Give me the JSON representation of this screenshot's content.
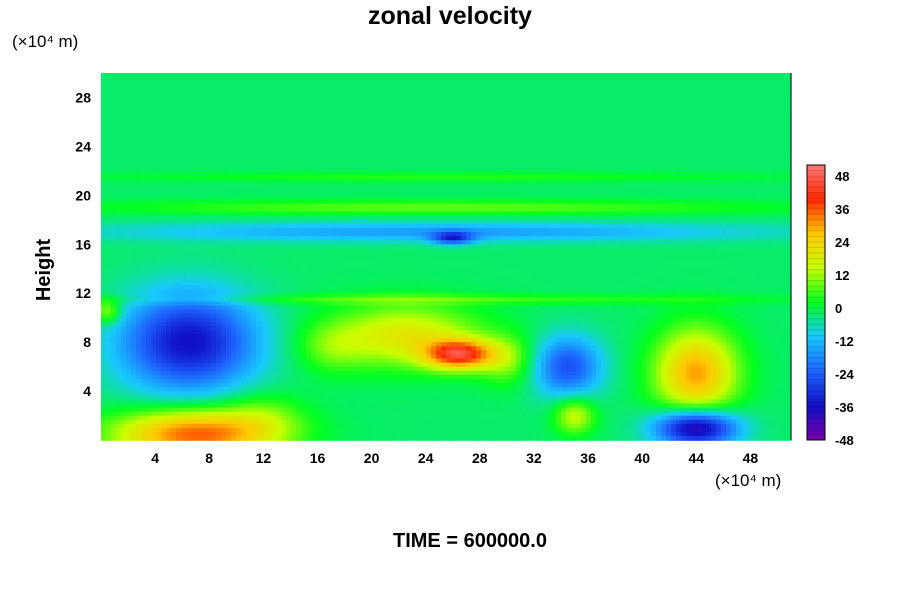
{
  "chart_data": {
    "type": "heatmap",
    "title": "zonal velocity",
    "xlabel": "",
    "ylabel": "Height",
    "x_unit": "(×10⁴ m)",
    "y_unit": "(×10⁴ m)",
    "xlim": [
      0,
      51
    ],
    "ylim": [
      0,
      30
    ],
    "x_ticks": [
      4,
      8,
      12,
      16,
      20,
      24,
      28,
      32,
      36,
      40,
      44,
      48
    ],
    "y_ticks": [
      4,
      8,
      12,
      16,
      20,
      24,
      28
    ],
    "colorbar": {
      "range": [
        -48,
        52
      ],
      "ticks": [
        48,
        36,
        24,
        12,
        0,
        -12,
        -24,
        -36,
        -48
      ],
      "colors_low_to_high": [
        "#7700aa",
        "#1010c8",
        "#1e64ff",
        "#18c8ff",
        "#00ff20",
        "#c8ff00",
        "#ffc800",
        "#ff2800",
        "#ff7878"
      ]
    },
    "background_value": -2,
    "features": [
      {
        "x": 6.5,
        "y": 8,
        "rx": 5,
        "ry": 4,
        "value": -34
      },
      {
        "x": 7.0,
        "y": 0.5,
        "rx": 6,
        "ry": 2,
        "value": 38
      },
      {
        "x": 26.5,
        "y": 7,
        "rx": 2.5,
        "ry": 1.2,
        "value": 40
      },
      {
        "x": 22.5,
        "y": 8.5,
        "rx": 5.5,
        "ry": 2.5,
        "value": 22
      },
      {
        "x": 34.5,
        "y": 6,
        "rx": 2.5,
        "ry": 2.5,
        "value": -24
      },
      {
        "x": 44.0,
        "y": 5.5,
        "rx": 3,
        "ry": 3.5,
        "value": 32
      },
      {
        "x": 44.0,
        "y": 1.0,
        "rx": 3,
        "ry": 1.5,
        "value": -42
      },
      {
        "x": 25.0,
        "y": 19,
        "rx": 25,
        "ry": 0.6,
        "value": 10
      },
      {
        "x": 25.0,
        "y": 17,
        "rx": 25,
        "ry": 0.8,
        "value": -14
      },
      {
        "x": 26.0,
        "y": 16.5,
        "rx": 1.5,
        "ry": 0.5,
        "value": -24
      },
      {
        "x": 25.0,
        "y": 21.5,
        "rx": 25,
        "ry": 0.4,
        "value": 6
      },
      {
        "x": 25.0,
        "y": 11.5,
        "rx": 25,
        "ry": 0.4,
        "value": 8
      },
      {
        "x": 35.0,
        "y": 2.0,
        "rx": 1.5,
        "ry": 1.5,
        "value": 18
      },
      {
        "x": 30.0,
        "y": 6.5,
        "rx": 2,
        "ry": 2,
        "value": 12
      },
      {
        "x": 0.5,
        "y": 10.5,
        "rx": 1,
        "ry": 1,
        "value": 16
      },
      {
        "x": 17.0,
        "y": 7.5,
        "rx": 2.5,
        "ry": 2,
        "value": 8
      },
      {
        "x": 12.0,
        "y": 2.0,
        "rx": 3,
        "ry": 2,
        "value": 8
      }
    ]
  },
  "footer": {
    "time_label": "TIME = 600000.0"
  }
}
